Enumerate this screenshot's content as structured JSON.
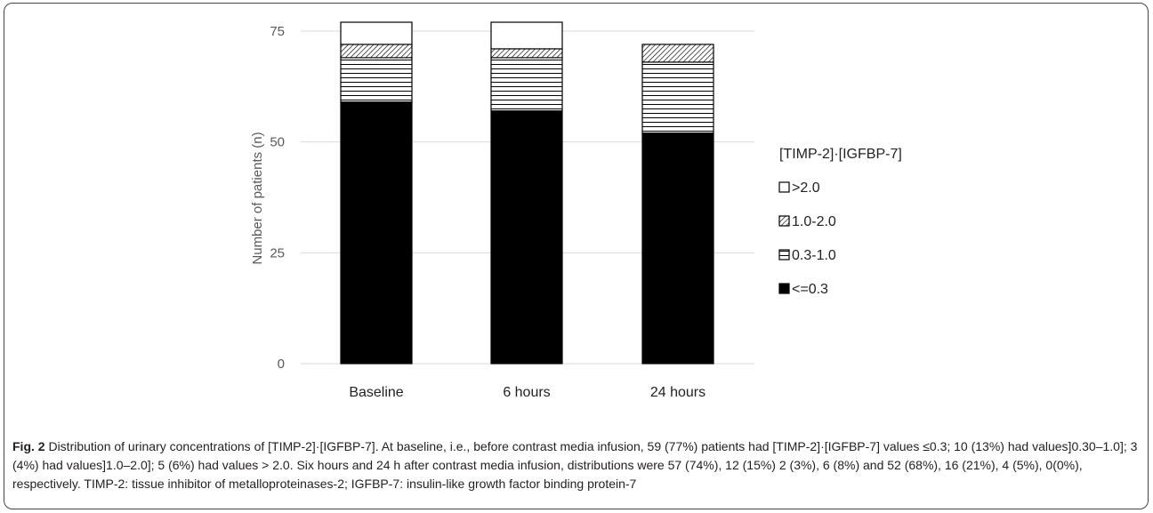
{
  "chart_data": {
    "type": "bar",
    "stacked": true,
    "categories": [
      "Baseline",
      "6 hours",
      "24 hours"
    ],
    "series": [
      {
        "name": "<=0.3",
        "values": [
          59,
          57,
          52
        ],
        "fill": "solid",
        "color": "#000000"
      },
      {
        "name": "0.3-1.0",
        "values": [
          10,
          12,
          16
        ],
        "fill": "horizontal-lines",
        "color": "#000000"
      },
      {
        "name": "1.0-2.0",
        "values": [
          3,
          2,
          4
        ],
        "fill": "diagonal-hatch",
        "color": "#000000"
      },
      {
        "name": ">2.0",
        "values": [
          5,
          6,
          0
        ],
        "fill": "white",
        "color": "#000000"
      }
    ],
    "ylabel": "Number of patients (n)",
    "ylim": [
      0,
      77
    ],
    "yticks": [
      0,
      25,
      50,
      75
    ],
    "legend_title": "[TIMP-2]·[IGFBP-7]",
    "legend_position": "right",
    "grid": true
  },
  "caption": {
    "label": "Fig. 2",
    "text": "Distribution of urinary concentrations of [TIMP-2]·[IGFBP-7]. At baseline, i.e., before contrast media infusion, 59 (77%) patients had [TIMP-2]·[IGFBP-7] values ≤0.3; 10 (13%) had values]0.30–1.0]; 3 (4%) had values]1.0–2.0]; 5 (6%) had values > 2.0. Six hours and 24 h after contrast media infusion, distributions were 57 (74%), 12 (15%) 2 (3%), 6 (8%) and 52 (68%), 16 (21%), 4 (5%), 0(0%), respectively. TIMP-2: tissue inhibitor of metalloproteinases-2; IGFBP-7: insulin-like growth factor binding protein-7"
  }
}
